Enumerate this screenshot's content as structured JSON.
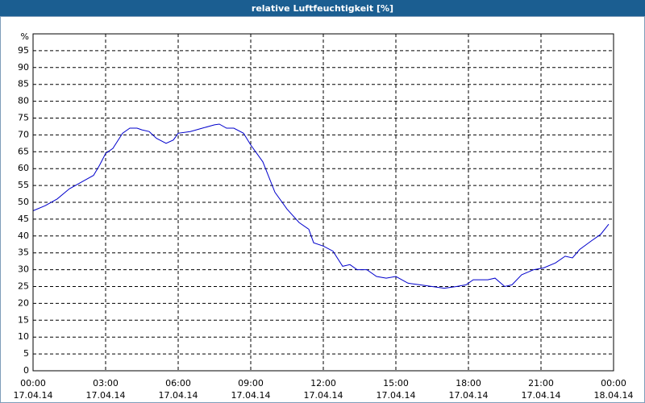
{
  "chart_data": {
    "type": "line",
    "title": "relative Luftfeuchtigkeit [%]",
    "y_label": "%",
    "x": [
      0,
      0.5,
      1.0,
      1.5,
      2.0,
      2.5,
      2.75,
      3.0,
      3.3,
      3.7,
      4.0,
      4.3,
      4.5,
      4.8,
      5.1,
      5.5,
      5.8,
      6.0,
      6.5,
      7.0,
      7.5,
      7.7,
      8.0,
      8.3,
      8.7,
      9.0,
      9.5,
      10.0,
      10.5,
      11.0,
      11.4,
      11.6,
      12.0,
      12.4,
      12.8,
      13.1,
      13.4,
      13.8,
      14.2,
      14.6,
      15.0,
      15.5,
      16.0,
      16.5,
      17.0,
      17.5,
      17.9,
      18.2,
      18.8,
      19.1,
      19.5,
      19.8,
      20.2,
      20.7,
      21.1,
      21.6,
      22.0,
      22.3,
      22.6,
      23.07,
      23.47,
      23.8
    ],
    "values": [
      47.5,
      49,
      51,
      54,
      56,
      58,
      61,
      64.5,
      66,
      70.5,
      72,
      72,
      71.5,
      71,
      69,
      67.5,
      68.5,
      70.5,
      71,
      72,
      73,
      73.2,
      72,
      72,
      70.5,
      67,
      62,
      53,
      48,
      44,
      42,
      38,
      37,
      35.5,
      31,
      31.5,
      30,
      30,
      28,
      27.5,
      28,
      26,
      25.5,
      25,
      24.5,
      25,
      25.5,
      27,
      27,
      27.5,
      25,
      25.5,
      28.5,
      30,
      30.5,
      32,
      34,
      33.5,
      36,
      38.5,
      40.5,
      43.5
    ],
    "color": "#0000cc",
    "xlim": [
      0,
      24
    ],
    "xticks": [
      {
        "value": 0,
        "label": "00:00"
      },
      {
        "value": 3,
        "label": "03:00"
      },
      {
        "value": 6,
        "label": "06:00"
      },
      {
        "value": 9,
        "label": "09:00"
      },
      {
        "value": 12,
        "label": "12:00"
      },
      {
        "value": 15,
        "label": "15:00"
      },
      {
        "value": 18,
        "label": "18:00"
      },
      {
        "value": 21,
        "label": "21:00"
      },
      {
        "value": 24,
        "label": "00:00"
      }
    ],
    "xtick_dates": [
      "17.04.14",
      "17.04.14",
      "17.04.14",
      "17.04.14",
      "17.04.14",
      "17.04.14",
      "17.04.14",
      "17.04.14",
      "18.04.14"
    ],
    "ylim": [
      0,
      100
    ],
    "yticks": [
      0,
      5,
      10,
      15,
      20,
      25,
      30,
      35,
      40,
      45,
      50,
      55,
      60,
      65,
      70,
      75,
      80,
      85,
      90,
      95
    ],
    "grid": true
  }
}
